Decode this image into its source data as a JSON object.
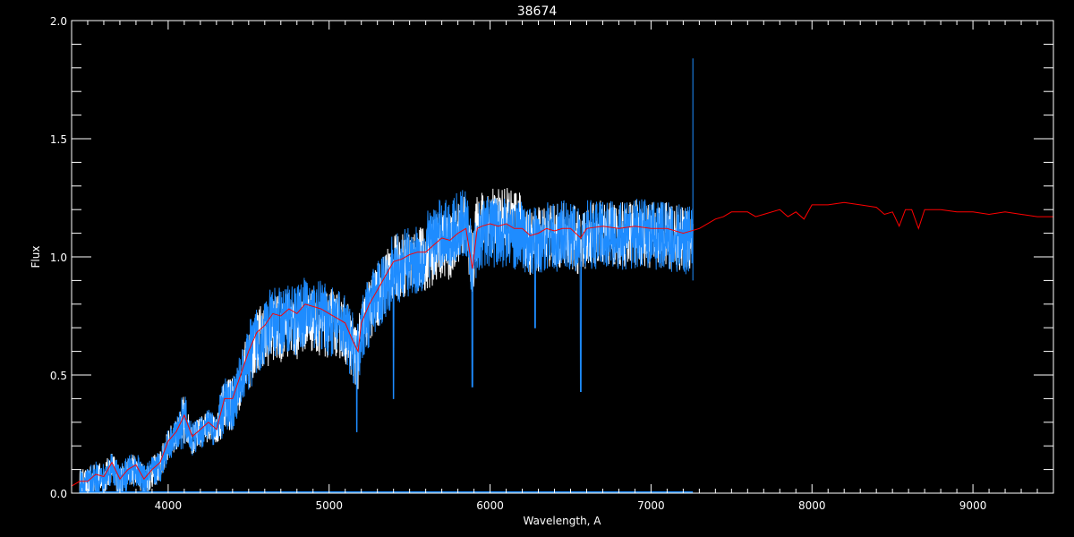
{
  "chart_data": {
    "type": "line",
    "title": "38674",
    "xlabel": "Wavelength, A",
    "ylabel": "Flux",
    "xlim": [
      3400,
      9500
    ],
    "ylim": [
      0.0,
      2.0
    ],
    "xticks": [
      4000,
      5000,
      6000,
      7000,
      8000,
      9000
    ],
    "xtick_labels": [
      "4000",
      "5000",
      "6000",
      "7000",
      "8000",
      "9000"
    ],
    "yticks": [
      0.0,
      0.5,
      1.0,
      1.5,
      2.0
    ],
    "ytick_labels": [
      "0.0",
      "0.5",
      "1.0",
      "1.5",
      "2.0"
    ],
    "grid": false,
    "background": "#000000",
    "series": [
      {
        "color": "#ff0000",
        "x": [
          3400,
          3450,
          3500,
          3550,
          3600,
          3650,
          3700,
          3750,
          3800,
          3850,
          3900,
          3950,
          4000,
          4050,
          4100,
          4150,
          4200,
          4250,
          4300,
          4350,
          4400,
          4450,
          4500,
          4550,
          4600,
          4650,
          4700,
          4750,
          4800,
          4850,
          4900,
          4950,
          5000,
          5050,
          5100,
          5150,
          5180,
          5200,
          5250,
          5300,
          5350,
          5400,
          5450,
          5500,
          5550,
          5600,
          5650,
          5700,
          5750,
          5800,
          5850,
          5890,
          5920,
          5950,
          6000,
          6050,
          6100,
          6150,
          6200,
          6250,
          6300,
          6350,
          6400,
          6450,
          6500,
          6563,
          6600,
          6700,
          6800,
          6900,
          7000,
          7100,
          7200,
          7300,
          7400,
          7450,
          7500,
          7600,
          7650,
          7700,
          7800,
          7850,
          7900,
          7950,
          8000,
          8100,
          8200,
          8300,
          8400,
          8450,
          8500,
          8542,
          8580,
          8620,
          8662,
          8700,
          8800,
          8900,
          9000,
          9100,
          9200,
          9300,
          9400,
          9500
        ],
        "y": [
          0.03,
          0.05,
          0.05,
          0.08,
          0.07,
          0.13,
          0.06,
          0.1,
          0.12,
          0.06,
          0.1,
          0.13,
          0.22,
          0.26,
          0.33,
          0.24,
          0.27,
          0.3,
          0.27,
          0.4,
          0.4,
          0.5,
          0.6,
          0.68,
          0.71,
          0.76,
          0.75,
          0.78,
          0.76,
          0.8,
          0.79,
          0.78,
          0.76,
          0.74,
          0.72,
          0.64,
          0.6,
          0.72,
          0.8,
          0.86,
          0.92,
          0.98,
          0.99,
          1.01,
          1.02,
          1.02,
          1.05,
          1.08,
          1.07,
          1.1,
          1.12,
          0.95,
          1.12,
          1.13,
          1.14,
          1.13,
          1.14,
          1.12,
          1.12,
          1.09,
          1.1,
          1.12,
          1.11,
          1.12,
          1.12,
          1.08,
          1.12,
          1.13,
          1.12,
          1.13,
          1.12,
          1.12,
          1.1,
          1.12,
          1.16,
          1.17,
          1.19,
          1.19,
          1.17,
          1.18,
          1.2,
          1.17,
          1.19,
          1.16,
          1.22,
          1.22,
          1.23,
          1.22,
          1.21,
          1.18,
          1.19,
          1.13,
          1.2,
          1.2,
          1.12,
          1.2,
          1.2,
          1.19,
          1.19,
          1.18,
          1.19,
          1.18,
          1.17,
          1.17
        ]
      },
      {
        "color": "#ffffff",
        "x_range": [
          3450,
          7260
        ],
        "note_lines": []
      },
      {
        "color": "#1e8cff",
        "x_range": [
          3450,
          7260
        ],
        "spike": {
          "x": 7260,
          "y": 1.84
        },
        "absorption_lines": [
          {
            "x": 5172,
            "y": 0.26
          },
          {
            "x": 5890,
            "y": 0.45
          },
          {
            "x": 6563,
            "y": 0.43
          },
          {
            "x": 6280,
            "y": 0.7
          },
          {
            "x": 5400,
            "y": 0.4
          },
          {
            "x": 4300,
            "y": 0.3
          }
        ]
      }
    ]
  }
}
